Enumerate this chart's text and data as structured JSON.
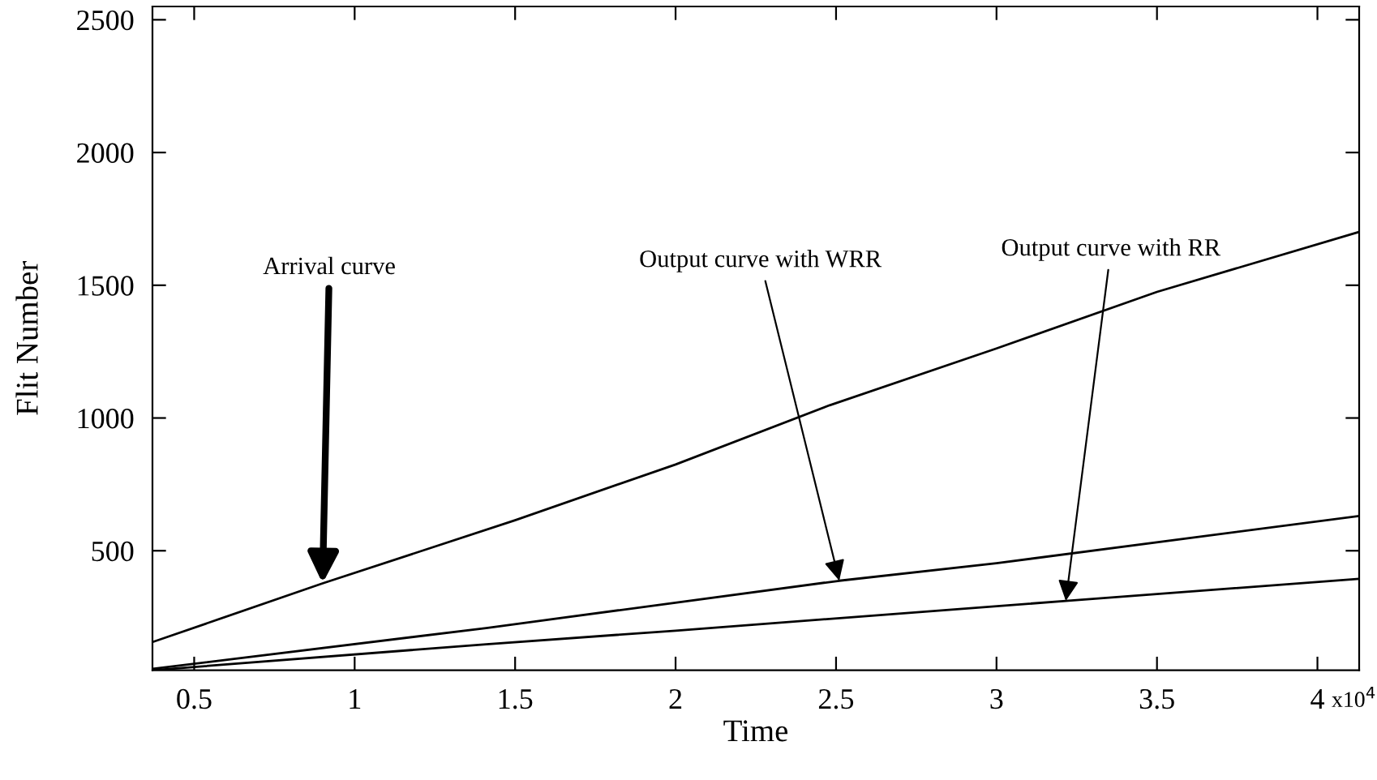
{
  "chart_data": {
    "type": "line",
    "xlabel": "Time",
    "ylabel": "Flit Number",
    "series": [
      {
        "color": "#000000",
        "x": [
          0.37,
          0.9,
          1.5,
          2.0,
          2.48,
          3.0,
          3.5,
          4.13
        ],
        "values": [
          156,
          377,
          615,
          825,
          1048,
          1262,
          1475,
          1701
        ]
      },
      {
        "color": "#000000",
        "x": [
          0.37,
          1.41,
          2.51,
          3.0,
          4.13
        ],
        "values": [
          55,
          209,
          387,
          453,
          631
        ]
      },
      {
        "color": "#000000",
        "x": [
          0.37,
          1.41,
          2.0,
          3.216,
          4.13
        ],
        "values": [
          50,
          148,
          199,
          311,
          394
        ]
      }
    ],
    "xlim": [
      0.37,
      4.13
    ],
    "ylim": [
      50,
      2550
    ],
    "xticks": [
      0.5,
      1,
      1.5,
      2,
      2.5,
      3,
      3.5,
      4
    ],
    "yticks": [
      500,
      1000,
      1500,
      2000,
      2500
    ],
    "grid": false,
    "legend": false,
    "marker": "none",
    "line_style": "solid",
    "annotations": [
      {
        "text": "Arrival curve",
        "x": 0.9,
        "y": 377
      },
      {
        "text": "Output curve with WRR",
        "x": 2.51,
        "y": 387
      },
      {
        "text": "Output curve with RR",
        "x": 3.216,
        "y": 311
      },
      "x10$^{4}$"
    ]
  }
}
